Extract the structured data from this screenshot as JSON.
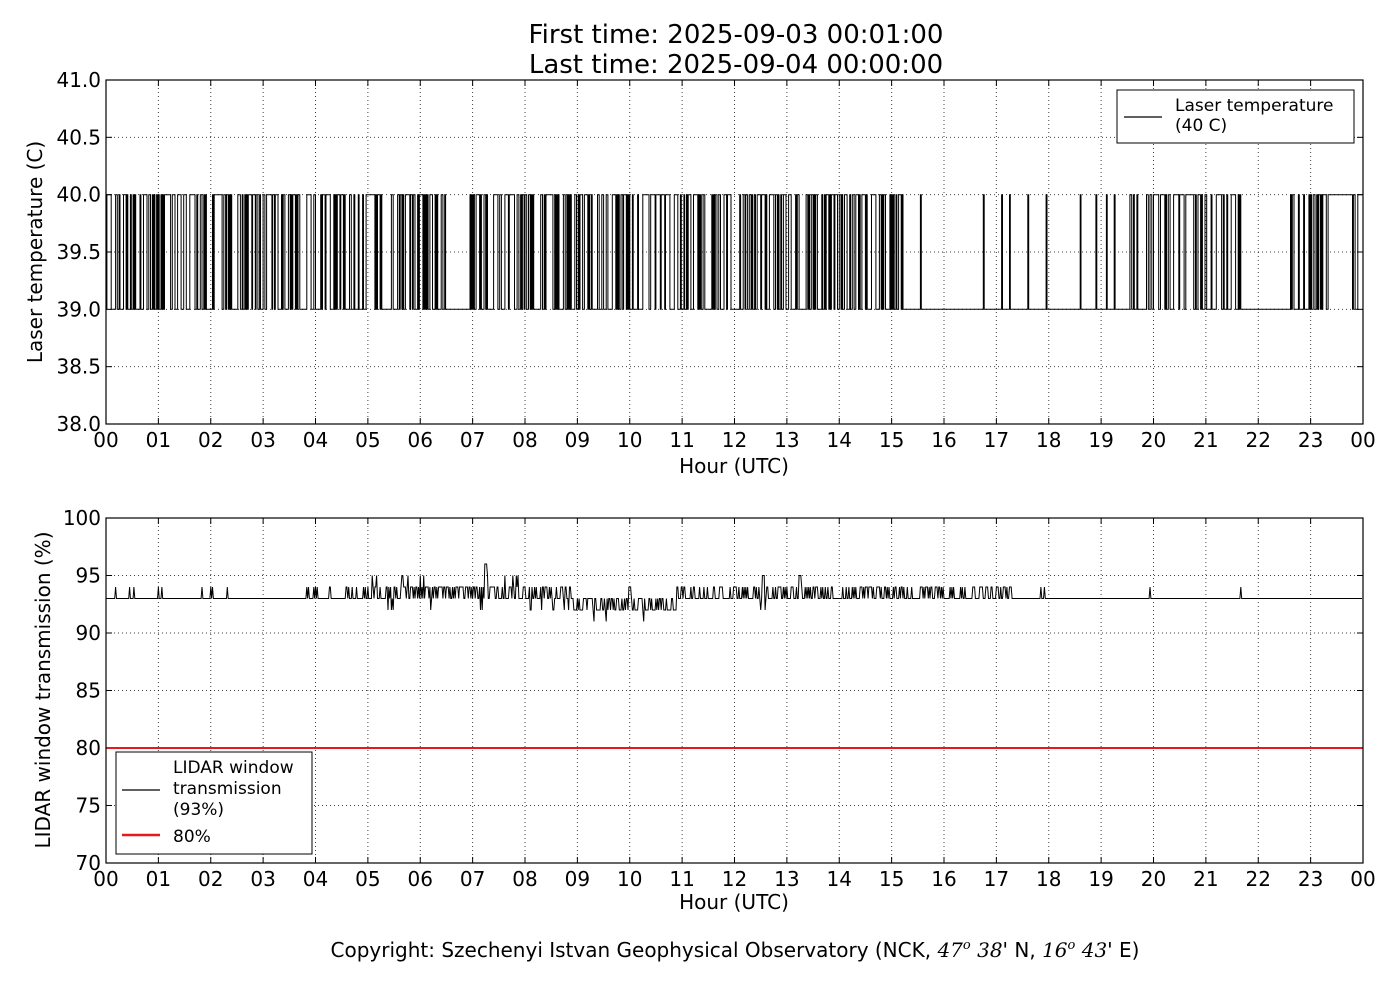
{
  "title": {
    "line1": "First time: 2025-09-03 00:01:00",
    "line2": "Last time: 2025-09-04 00:00:00"
  },
  "copyright": {
    "prefix": "Copyright: Szechenyi Istvan Geophysical Observatory (NCK, ",
    "lat_deg": "47",
    "deg_sup": "o",
    "lat_min": "38",
    "lat_suffix": "' N, ",
    "lon_deg": "16",
    "lon_min": "43",
    "lon_suffix": "' E)"
  },
  "chart_data": [
    {
      "type": "line",
      "xlabel": "Hour (UTC)",
      "ylabel": "Laser temperature (C)",
      "xlim": [
        0,
        24
      ],
      "ylim": [
        38.0,
        41.0
      ],
      "yticks": [
        "38.0",
        "38.5",
        "39.0",
        "39.5",
        "40.0",
        "40.5",
        "41.0"
      ],
      "xticks": [
        "00",
        "01",
        "02",
        "03",
        "04",
        "05",
        "06",
        "07",
        "08",
        "09",
        "10",
        "11",
        "12",
        "13",
        "14",
        "15",
        "16",
        "17",
        "18",
        "19",
        "20",
        "21",
        "22",
        "23",
        "00"
      ],
      "grid": true,
      "legend_position": "top-right",
      "series": [
        {
          "name": "Laser temperature\n(40 C)",
          "color": "#000000",
          "values_mode": "step signal switching between 39.0 and 40.0",
          "levels": [
            39.0,
            40.0
          ],
          "dense_intervals_hours": [
            [
              0,
              6.5
            ],
            [
              6.95,
              10.1
            ],
            [
              10.1,
              15.25
            ],
            [
              19.55,
              21.7
            ],
            [
              22.6,
              24
            ]
          ],
          "sparse_switch_hours": [
            15.55,
            16.75,
            17.1,
            17.25,
            17.6,
            17.95,
            18.6,
            18.9,
            19.1,
            19.25,
            22.65
          ]
        }
      ]
    },
    {
      "type": "line",
      "xlabel": "Hour (UTC)",
      "ylabel": "LIDAR window transmission (%)",
      "xlim": [
        0,
        24
      ],
      "ylim": [
        70,
        100
      ],
      "yticks": [
        "70",
        "75",
        "80",
        "85",
        "90",
        "95",
        "100"
      ],
      "xticks": [
        "00",
        "01",
        "02",
        "03",
        "04",
        "05",
        "06",
        "07",
        "08",
        "09",
        "10",
        "11",
        "12",
        "13",
        "14",
        "15",
        "16",
        "17",
        "18",
        "19",
        "20",
        "21",
        "22",
        "23",
        "00"
      ],
      "grid": true,
      "legend_position": "bottom-left",
      "series": [
        {
          "name": "LIDAR window\ntransmission\n(93%)",
          "color": "#000000",
          "baseline": 93,
          "range_observed": [
            91,
            96
          ]
        },
        {
          "name": "80%",
          "color": "#e41a1c",
          "values": [
            80,
            80
          ],
          "x": [
            0,
            24
          ]
        }
      ]
    }
  ]
}
